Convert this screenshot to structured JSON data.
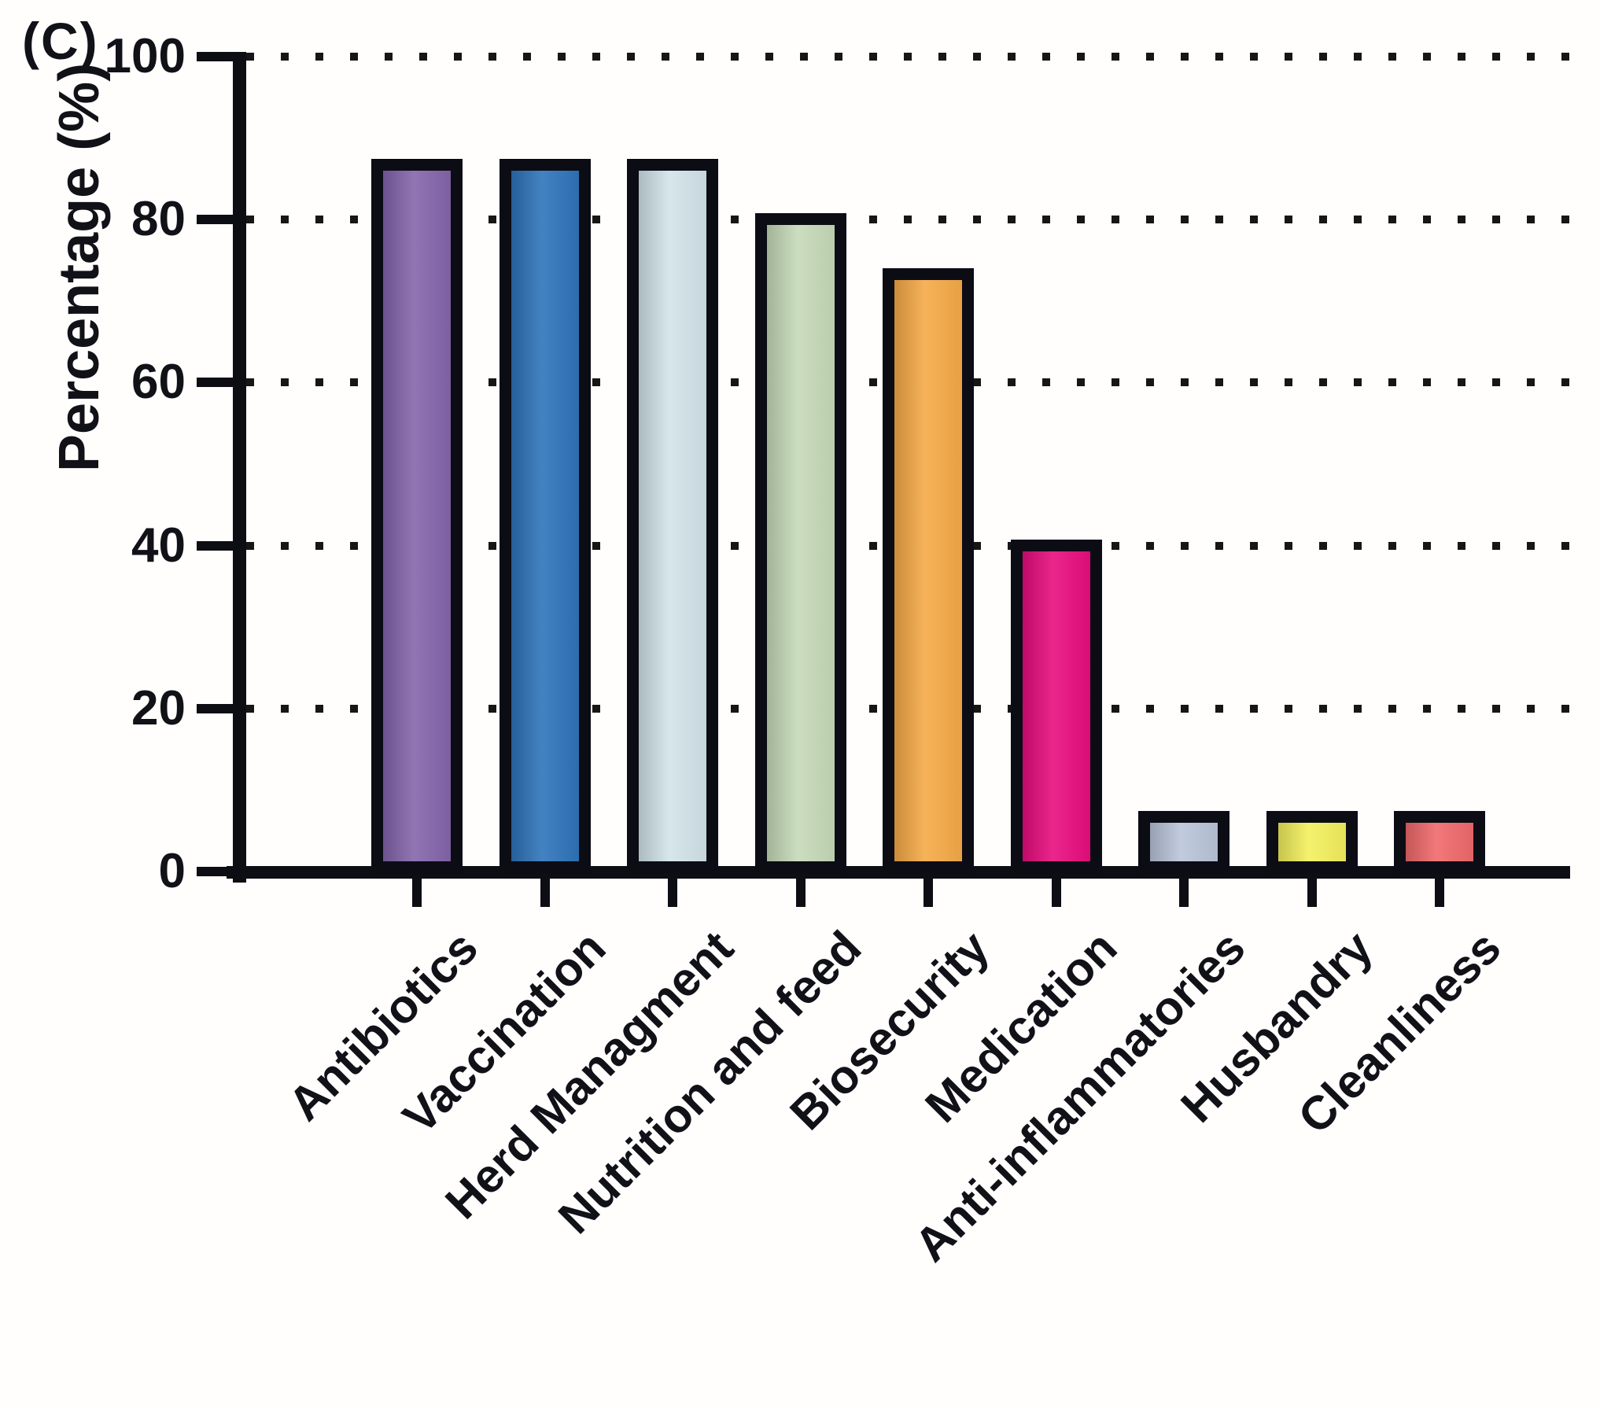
{
  "panel_label": "(C)",
  "chart_data": {
    "type": "bar",
    "title": "",
    "xlabel": "",
    "ylabel": "Percentage (%)",
    "ylim": [
      0,
      100
    ],
    "yticks": [
      0,
      20,
      40,
      60,
      80,
      100
    ],
    "grid": "horizontal dotted lines at y ticks 20-100",
    "legend": "none",
    "categories": [
      "Antibiotics",
      "Vaccination",
      "Herd Managment",
      "Nutrition and feed",
      "Biosecurity",
      "Medication",
      "Anti-inflammatories",
      "Husbandry",
      "Cleanliness"
    ],
    "values": [
      86.7,
      86.7,
      86.7,
      80,
      73.3,
      40,
      6.7,
      6.7,
      6.7
    ],
    "bar_colors": [
      "#8465ab",
      "#2e74ba",
      "#d2e4ea",
      "#c6dab8",
      "#f6aa47",
      "#e80d7e",
      "#bac5da",
      "#f3f05d",
      "#f0696b"
    ],
    "bar_border_color": "#0c0c15",
    "axis_color": "#0d0d14"
  }
}
